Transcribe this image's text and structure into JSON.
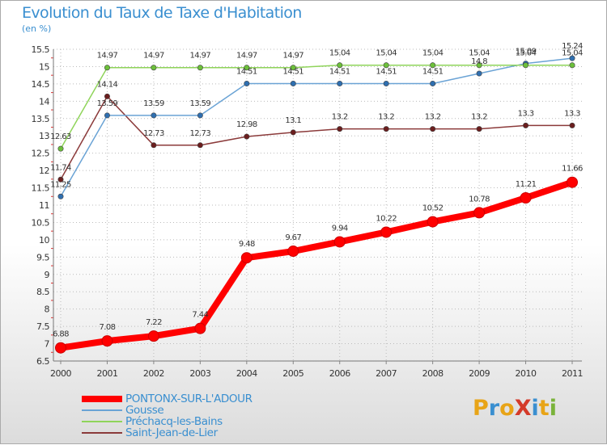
{
  "title": "Evolution du Taux de Taxe d'Habitation",
  "subtitle": "(en %)",
  "logo": {
    "text": "ProXiti",
    "colors": [
      "#e8a417",
      "#3a8fd0",
      "#e8a417",
      "#d43b2a",
      "#3a8fd0",
      "#e8a417",
      "#7ab33a"
    ]
  },
  "chart_data": {
    "type": "line",
    "title": "Evolution du Taux de Taxe d'Habitation",
    "ylabel": "(en %)",
    "xlabel": "",
    "ylim": [
      6.5,
      15.5
    ],
    "yticks": [
      "6.5",
      "7",
      "7.5",
      "8",
      "8.5",
      "9",
      "9.5",
      "10",
      "10.5",
      "11",
      "11.5",
      "12",
      "12.5",
      "13",
      "13.5",
      "14",
      "14.5",
      "15",
      "15.5"
    ],
    "categories": [
      "2000",
      "2001",
      "2002",
      "2003",
      "2004",
      "2005",
      "2006",
      "2007",
      "2008",
      "2009",
      "2010",
      "2011"
    ],
    "grid": true,
    "legend_position": "bottom-left",
    "series": [
      {
        "name": "PONTONX-SUR-L'ADOUR",
        "color": "#ff0000",
        "values": [
          6.88,
          7.08,
          7.22,
          7.44,
          9.48,
          9.67,
          9.94,
          10.22,
          10.52,
          10.78,
          11.21,
          11.66
        ],
        "labels": [
          "6.88",
          "7.08",
          "7.22",
          "7.44",
          "9.48",
          "9.67",
          "9.94",
          "10.22",
          "10.52",
          "10.78",
          "11.21",
          "11.66"
        ]
      },
      {
        "name": "Gousse",
        "color": "#6aa3d5",
        "marker": "#2f6fb0",
        "values": [
          11.25,
          13.59,
          13.59,
          13.59,
          14.51,
          14.51,
          14.51,
          14.51,
          14.51,
          14.8,
          15.09,
          15.24
        ],
        "labels": [
          "11.25",
          "13.59",
          "13.59",
          "13.59",
          "14.51",
          "14.51",
          "14.51",
          "14.51",
          "14.51",
          "14.8",
          "15.09",
          "15.24"
        ]
      },
      {
        "name": "Préchacq-les-Bains",
        "color": "#8fd45a",
        "marker": "#6cc03a",
        "values": [
          12.63,
          14.97,
          14.97,
          14.97,
          14.97,
          14.97,
          15.04,
          15.04,
          15.04,
          15.04,
          15.04,
          15.04
        ],
        "labels": [
          "12.63",
          "14.97",
          "14.97",
          "14.97",
          "14.97",
          "14.97",
          "15.04",
          "15.04",
          "15.04",
          "15.04",
          "15.04",
          "15.04"
        ]
      },
      {
        "name": "Saint-Jean-de-Lier",
        "color": "#8b3a3a",
        "marker": "#6b1e1e",
        "values": [
          11.74,
          14.14,
          12.73,
          12.73,
          12.98,
          13.1,
          13.2,
          13.2,
          13.2,
          13.2,
          13.3,
          13.3
        ],
        "labels": [
          "11.74",
          "14.14",
          "12.73",
          "12.73",
          "12.98",
          "13.1",
          "13.2",
          "13.2",
          "13.2",
          "13.2",
          "13.3",
          "13.3"
        ]
      }
    ]
  }
}
